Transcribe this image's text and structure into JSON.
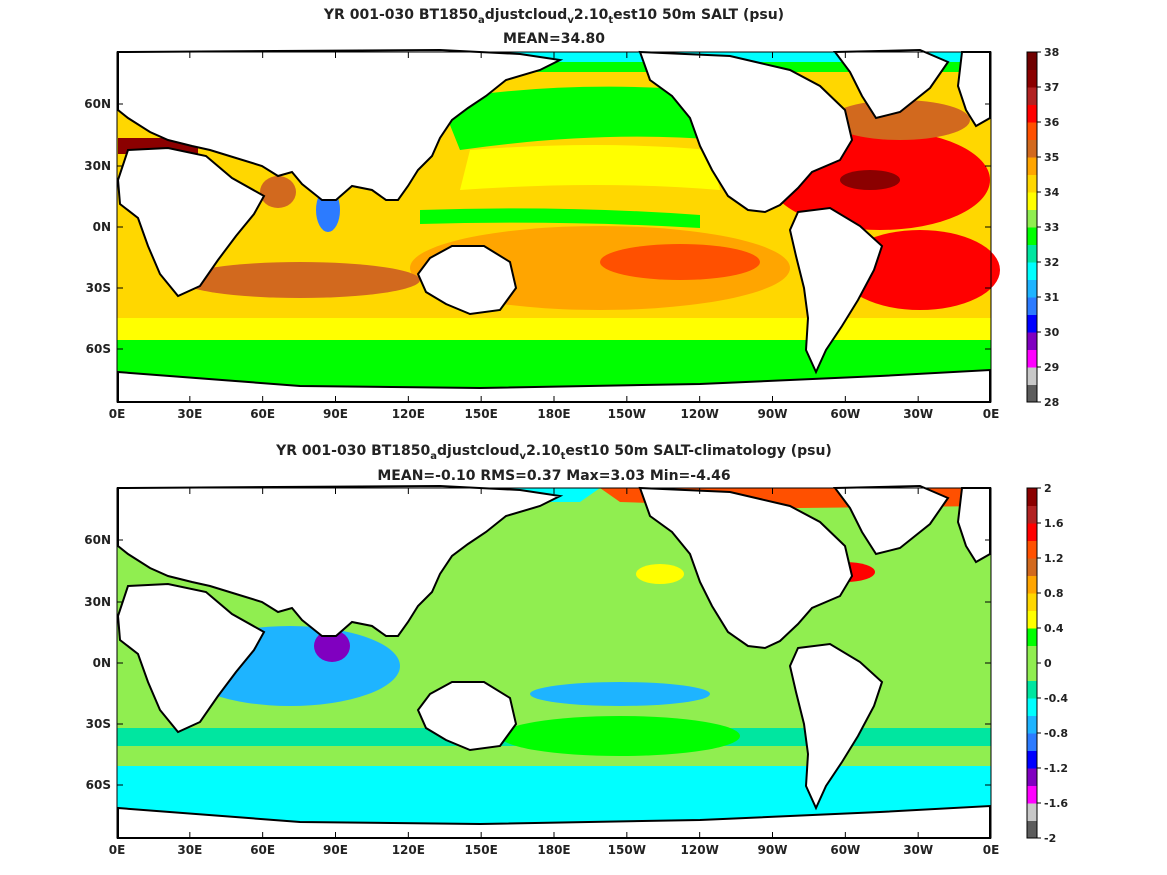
{
  "panels": [
    {
      "id": "top",
      "title_parts": [
        "YR 001-030 BT1850",
        "a",
        "djustcloud",
        "v",
        "2.10",
        "t",
        "est10 50m SALT (psu)"
      ],
      "subtitle": "MEAN=34.80",
      "colorbar": {
        "ticks": [
          "38",
          "37",
          "36",
          "35",
          "34",
          "33",
          "32",
          "31",
          "30",
          "29",
          "28"
        ],
        "colors": [
          "#5c5c5c",
          "#c8c8c8",
          "#ff00ff",
          "#8000c0",
          "#0000ff",
          "#2c7bff",
          "#1eb4ff",
          "#00ffff",
          "#00e6a0",
          "#00ff00",
          "#90ee50",
          "#ffff00",
          "#ffd700",
          "#ffa500",
          "#d2691e",
          "#ff5000",
          "#ff0000",
          "#b22222",
          "#8b0000",
          "#700000"
        ]
      }
    },
    {
      "id": "bottom",
      "title_parts": [
        "YR 001-030 BT1850",
        "a",
        "djustcloud",
        "v",
        "2.10",
        "t",
        "est10 50m SALT-climatology (psu)"
      ],
      "subtitle": "MEAN=-0.10   RMS=0.37   Max=3.03   Min=-4.46",
      "colorbar": {
        "ticks": [
          "2",
          "1.6",
          "1.2",
          "0.8",
          "0.4",
          "0",
          "-0.4",
          "-0.8",
          "-1.2",
          "-1.6",
          "-2"
        ],
        "colors": [
          "#5c5c5c",
          "#c8c8c8",
          "#ff00ff",
          "#8000c0",
          "#0000ff",
          "#2c7bff",
          "#1eb4ff",
          "#00ffff",
          "#00e6a0",
          "#90ee50",
          "#90ee50",
          "#00ff00",
          "#ffff00",
          "#ffd700",
          "#ffa500",
          "#d2691e",
          "#ff5000",
          "#ff0000",
          "#b22222",
          "#8b0000"
        ]
      }
    }
  ],
  "x_ticks": [
    "0E",
    "30E",
    "60E",
    "90E",
    "120E",
    "150E",
    "180E",
    "150W",
    "120W",
    "90W",
    "60W",
    "30W",
    "0E"
  ],
  "y_ticks": [
    "60N",
    "30N",
    "0N",
    "30S",
    "60S"
  ]
}
